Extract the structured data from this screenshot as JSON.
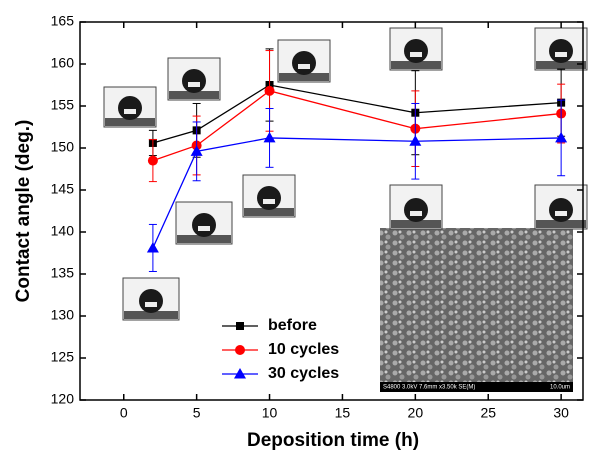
{
  "chart_data": {
    "type": "line",
    "xlabel": "Deposition time (h)",
    "ylabel": "Contact angle (deg.)",
    "x": [
      2,
      5,
      10,
      20,
      30
    ],
    "series": [
      {
        "name": "before",
        "color": "#000000",
        "marker": "square",
        "values": [
          150.6,
          152.1,
          157.5,
          154.2,
          155.4
        ],
        "errors": [
          1.5,
          3.2,
          4.3,
          5.0,
          4.0
        ]
      },
      {
        "name": "10 cycles",
        "color": "#ff0000",
        "marker": "circle",
        "values": [
          148.5,
          150.3,
          156.8,
          152.3,
          154.1
        ],
        "errors": [
          2.5,
          3.5,
          4.8,
          4.5,
          3.5
        ]
      },
      {
        "name": "30 cycles",
        "color": "#0000ff",
        "marker": "triangle",
        "values": [
          138.1,
          149.6,
          151.2,
          150.8,
          151.2
        ],
        "errors": [
          2.8,
          3.5,
          3.5,
          4.5,
          4.5
        ]
      }
    ],
    "xlim": [
      -3,
      31.5
    ],
    "xticks": [
      0,
      5,
      10,
      15,
      20,
      25,
      30
    ],
    "ylim": [
      120,
      165
    ],
    "yticks": [
      120,
      125,
      130,
      135,
      140,
      145,
      150,
      155,
      160,
      165
    ],
    "legend": "lower center",
    "annotations": [
      "S4800 3.0kV 7.6mm x3.50k SE(M)",
      "10.0um"
    ]
  }
}
